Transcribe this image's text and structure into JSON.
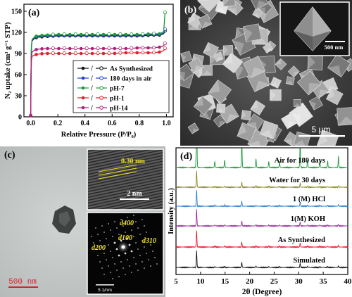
{
  "panel_a": {
    "label": "(a)",
    "ylabel": "N₂ uptake (cm³ g⁻¹ STP)",
    "xlabel": "Relative Pressure (P/P₀)",
    "legend_sep": "/",
    "legend_colors": [
      "#111111",
      "#1f3fd0",
      "#1a9a3a",
      "#e0202a",
      "#b0207a"
    ]
  },
  "panel_b": {
    "label": "(b)",
    "scale_main": "5 μm",
    "scale_inset": "500 nm"
  },
  "panel_c": {
    "label": "(c)",
    "scale_main": "500 nm",
    "scale_hrtem": "2 nm",
    "d_spacing": "0.30 nm",
    "saed_d400": "d400",
    "saed_d100": "d100",
    "saed_d310": "d310",
    "saed_d200": "d200",
    "scale_saed": "5 1/nm"
  },
  "panel_d": {
    "label": "(d)",
    "ylabel": "Intensity (a.u.)",
    "xlabel": "2θ (Degree)"
  },
  "chart_data": [
    {
      "type": "line",
      "panel": "a",
      "xlabel": "Relative Pressure (P/P0)",
      "ylabel": "N2 uptake (cm3 g-1 STP)",
      "xlim": [
        -0.05,
        1.05
      ],
      "ylim": [
        0,
        160
      ],
      "x_ticks": [
        0.0,
        0.2,
        0.4,
        0.6,
        0.8,
        1.0
      ],
      "y_ticks": [
        0,
        30,
        60,
        90,
        120,
        150
      ],
      "legend_position": "lower-right",
      "x": [
        0.0,
        0.002,
        0.005,
        0.01,
        0.03,
        0.05,
        0.1,
        0.2,
        0.3,
        0.4,
        0.5,
        0.6,
        0.7,
        0.8,
        0.9,
        0.95,
        0.98,
        0.99
      ],
      "series": [
        {
          "name": "As Synthesized",
          "color": "#111111",
          "values": [
            2,
            60,
            98,
            108,
            112,
            113,
            114,
            115,
            115,
            115,
            115,
            115,
            115,
            115,
            116,
            116,
            118,
            122
          ]
        },
        {
          "name": "180 days in air",
          "color": "#1f3fd0",
          "values": [
            2,
            60,
            99,
            109,
            113,
            114,
            115,
            116,
            116,
            116,
            116,
            116,
            116,
            116,
            117,
            117,
            119,
            124
          ]
        },
        {
          "name": "pH-7",
          "color": "#1a9a3a",
          "values": [
            2,
            62,
            100,
            110,
            114,
            115,
            116,
            117,
            117,
            117,
            117,
            117,
            117,
            117,
            118,
            118,
            121,
            148
          ]
        },
        {
          "name": "pH-1",
          "color": "#e0202a",
          "values": [
            2,
            50,
            80,
            86,
            88,
            89,
            90,
            90,
            90,
            90,
            90,
            90,
            91,
            91,
            91,
            92,
            94,
            97
          ]
        },
        {
          "name": "pH-14",
          "color": "#b0207a",
          "values": [
            2,
            52,
            84,
            92,
            95,
            96,
            97,
            97,
            97,
            97,
            97,
            97,
            97,
            98,
            98,
            99,
            101,
            104
          ]
        }
      ]
    },
    {
      "type": "line",
      "panel": "d",
      "xlabel": "2θ (Degree)",
      "ylabel": "Intensity (a.u.)",
      "xlim": [
        5,
        40
      ],
      "x_ticks": [
        5,
        10,
        15,
        20,
        25,
        30,
        35,
        40
      ],
      "peaks_2theta": [
        9.2,
        12.9,
        14.9,
        18.4,
        21.3,
        23.9,
        26.1,
        30.3,
        31.8,
        34.3,
        35.9,
        38.1
      ],
      "peak_heights": [
        1.0,
        0.05,
        0.06,
        0.28,
        0.07,
        0.05,
        0.05,
        0.22,
        0.06,
        0.05,
        0.05,
        0.09
      ],
      "series": [
        {
          "name": "Simulated",
          "color": "#111111"
        },
        {
          "name": "As Synthesized",
          "color": "#e0202a"
        },
        {
          "name": "1(M) KOH",
          "color": "#9a2aa0"
        },
        {
          "name": "1 (M) HCl",
          "color": "#2a7fd0"
        },
        {
          "name": "Water for 30 days",
          "color": "#8a8a20"
        },
        {
          "name": "Air for 180 days",
          "color": "#1a9a3a"
        }
      ]
    }
  ]
}
